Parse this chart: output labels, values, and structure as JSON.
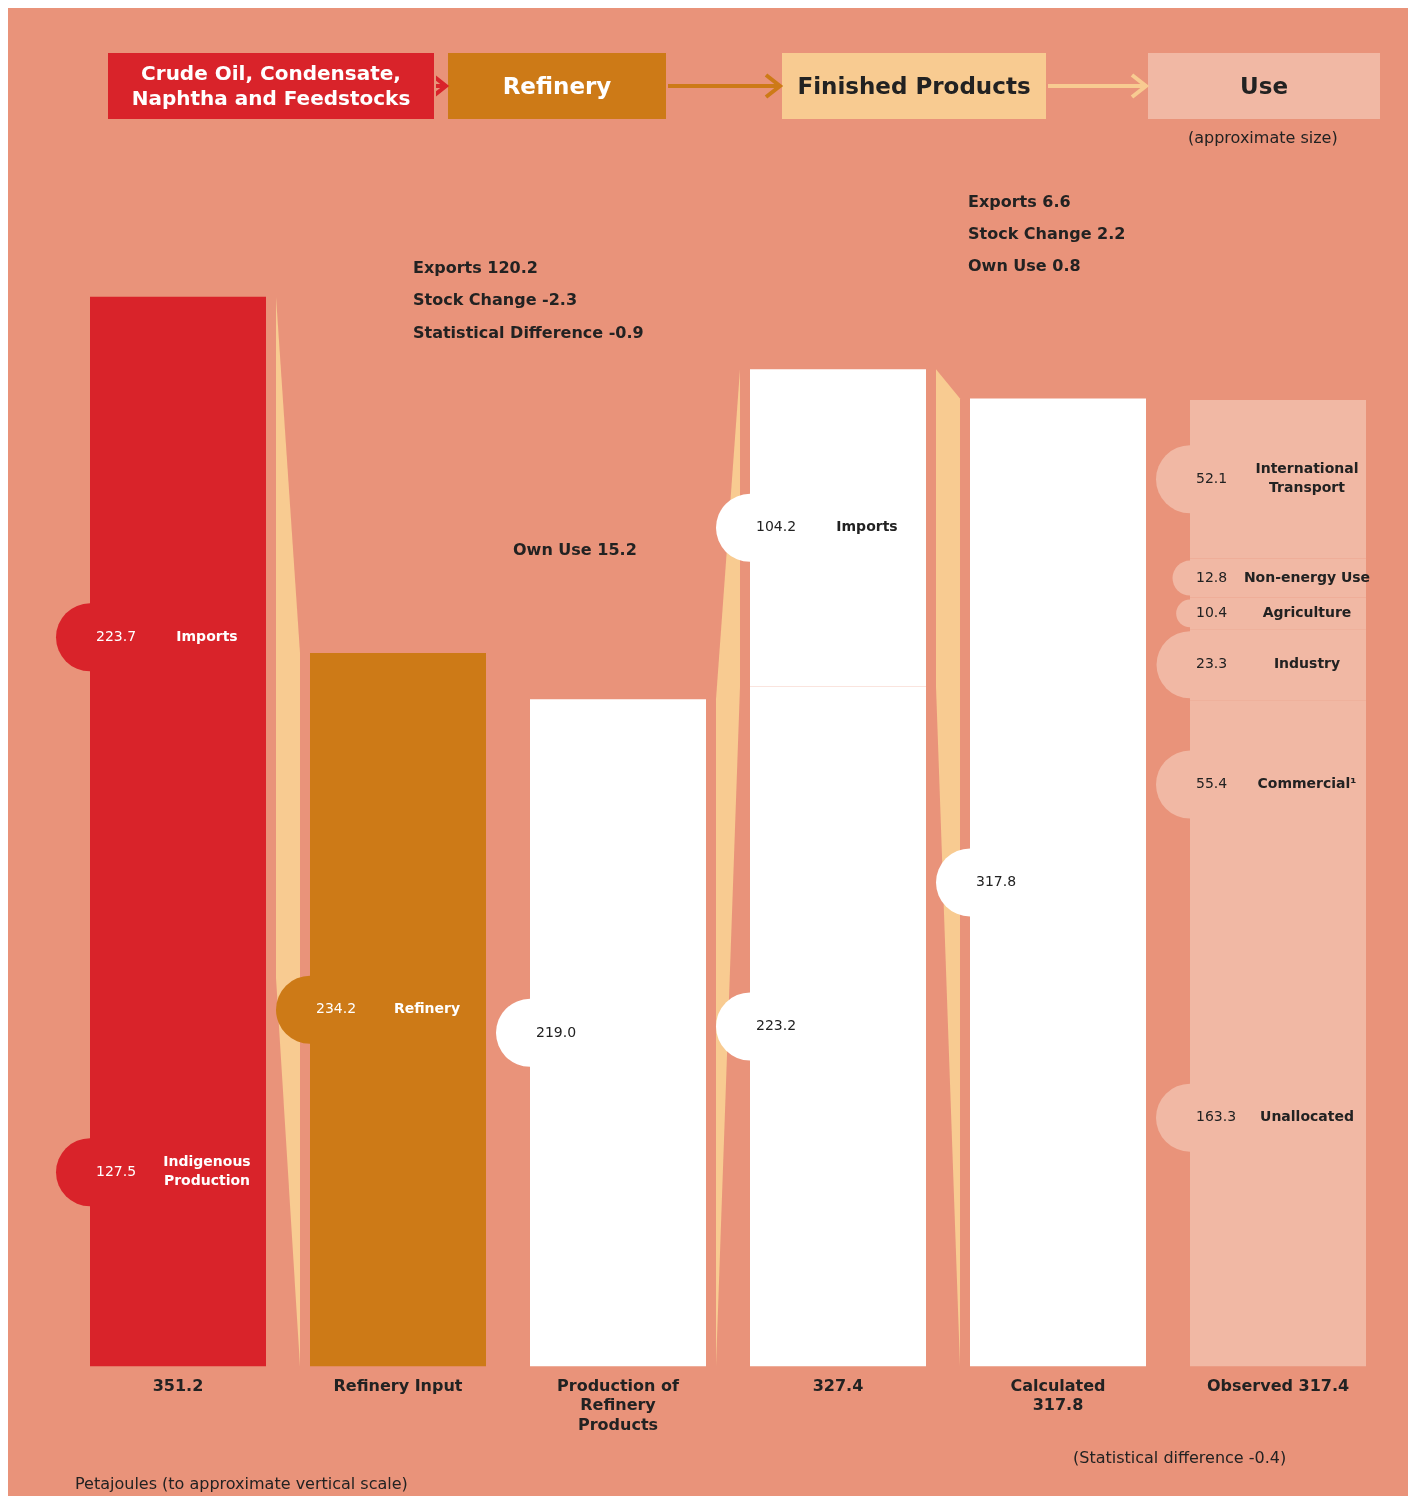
{
  "chart_data": {
    "type": "bar",
    "stacked": true,
    "tick_labels": "x",
    "data_labels": true,
    "categories": [
      "351.2",
      "Refinery Input",
      "Production of Refinery Products",
      "327.4",
      "Calculated 317.8",
      "Observed 317.4"
    ],
    "series": [
      {
        "name": "Indigenous Production",
        "color": "#d9232a",
        "values": [
          127.5,
          null,
          null,
          null,
          null,
          null
        ]
      },
      {
        "name": "Imports",
        "color": "#d9232a",
        "values": [
          223.7,
          null,
          null,
          null,
          null,
          null
        ]
      },
      {
        "name": "Refinery",
        "color": "#cd7a17",
        "values": [
          null,
          234.2,
          null,
          null,
          null,
          null
        ]
      },
      {
        "color": "#ffffff",
        "values": [
          null,
          null,
          219.0,
          null,
          null,
          null
        ],
        "value_labels": [
          null,
          null,
          "219.0",
          null,
          null,
          null
        ]
      },
      {
        "color": "#ffffff",
        "values": [
          null,
          null,
          null,
          223.2,
          null,
          null
        ]
      },
      {
        "name": "Imports",
        "color": "#ffffff",
        "values": [
          null,
          null,
          null,
          104.2,
          null,
          null
        ]
      },
      {
        "color": "#ffffff",
        "values": [
          null,
          null,
          null,
          null,
          317.8,
          null
        ]
      },
      {
        "name": "Unallocated",
        "color": "#f1b8a4",
        "values": [
          null,
          null,
          null,
          null,
          null,
          163.3
        ]
      },
      {
        "name": "Commercial¹",
        "color": "#f1b8a4",
        "values": [
          null,
          null,
          null,
          null,
          null,
          55.4
        ]
      },
      {
        "name": "Industry",
        "color": "#f1b8a4",
        "values": [
          null,
          null,
          null,
          null,
          null,
          23.3
        ]
      },
      {
        "name": "Agriculture",
        "color": "#f1b8a4",
        "values": [
          null,
          null,
          null,
          null,
          null,
          10.4
        ]
      },
      {
        "name": "Non-energy Use",
        "color": "#f1b8a4",
        "values": [
          null,
          null,
          null,
          null,
          null,
          12.8
        ]
      },
      {
        "name": "International Transport",
        "color": "#f1b8a4",
        "values": [
          null,
          null,
          null,
          null,
          null,
          52.1
        ]
      }
    ],
    "annotations": [
      "Crude Oil, Condensate, Naphtha and Feedstocks",
      "Refinery",
      "Finished Products",
      "Use",
      "(approximate size)",
      "Exports 120.2",
      "Stock Change -2.3",
      "Statistical Difference -0.9",
      "Own Use 15.2",
      "Exports 6.6",
      "Stock Change 2.2",
      "Own Use 0.8",
      "(Statistical difference -0.4)",
      "Petajoules (to approximate vertical scale)"
    ]
  }
}
